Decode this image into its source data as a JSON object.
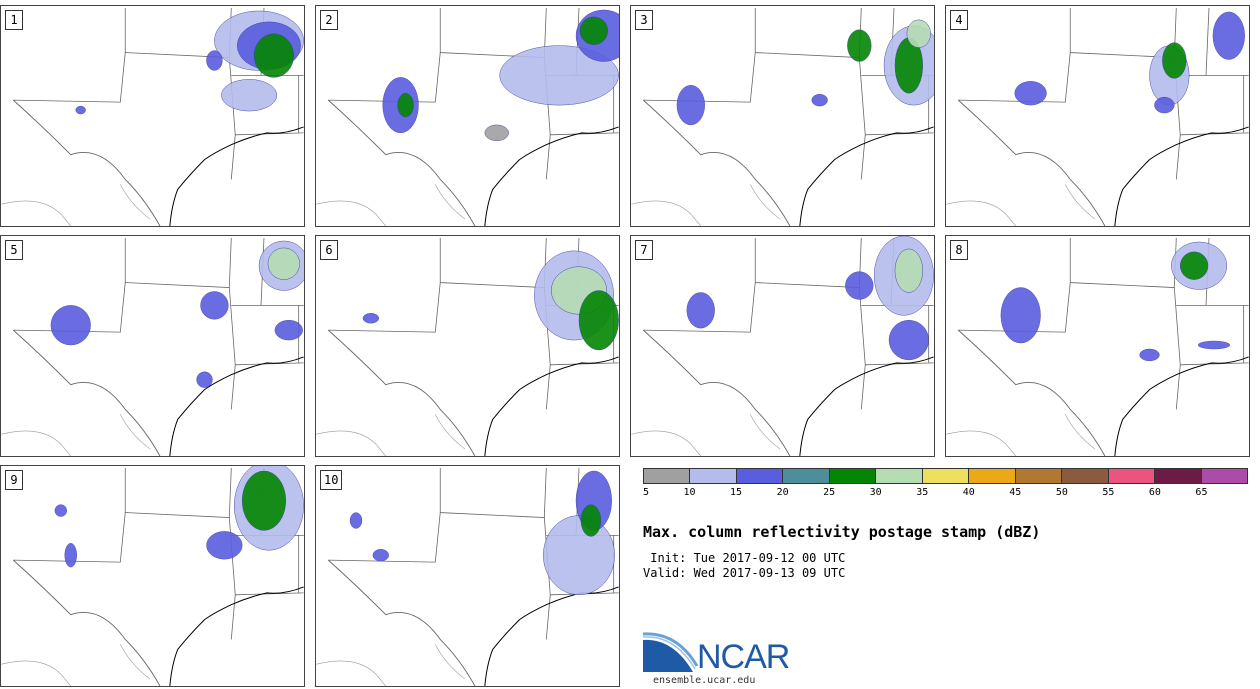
{
  "figure": {
    "title": "Max. column reflectivity postage stamp (dBZ)",
    "init": " Init: Tue 2017-09-12 00 UTC",
    "valid": "Valid: Wed 2017-09-13 09 UTC",
    "logo_text": "NCAR",
    "logo_url": "ensemble.ucar.edu"
  },
  "panels": [
    {
      "label": "1"
    },
    {
      "label": "2"
    },
    {
      "label": "3"
    },
    {
      "label": "4"
    },
    {
      "label": "5"
    },
    {
      "label": "6"
    },
    {
      "label": "7"
    },
    {
      "label": "8"
    },
    {
      "label": "9"
    },
    {
      "label": "10"
    }
  ],
  "colorbar": {
    "colors": [
      "#a0a0a0",
      "#b4bcec",
      "#5a5ede",
      "#4e8e9a",
      "#048604",
      "#b6dcb4",
      "#ece05e",
      "#eca818",
      "#b07830",
      "#8c5a3e",
      "#ec5480",
      "#6c1c44",
      "#ac4ca8"
    ],
    "labels": [
      "5",
      "10",
      "15",
      "20",
      "25",
      "30",
      "35",
      "40",
      "45",
      "50",
      "55",
      "60",
      "65"
    ]
  },
  "colors": {
    "border": "#555555",
    "coast": "#000000",
    "state_line": "#666666",
    "logo_blue": "#1f5aa6"
  }
}
